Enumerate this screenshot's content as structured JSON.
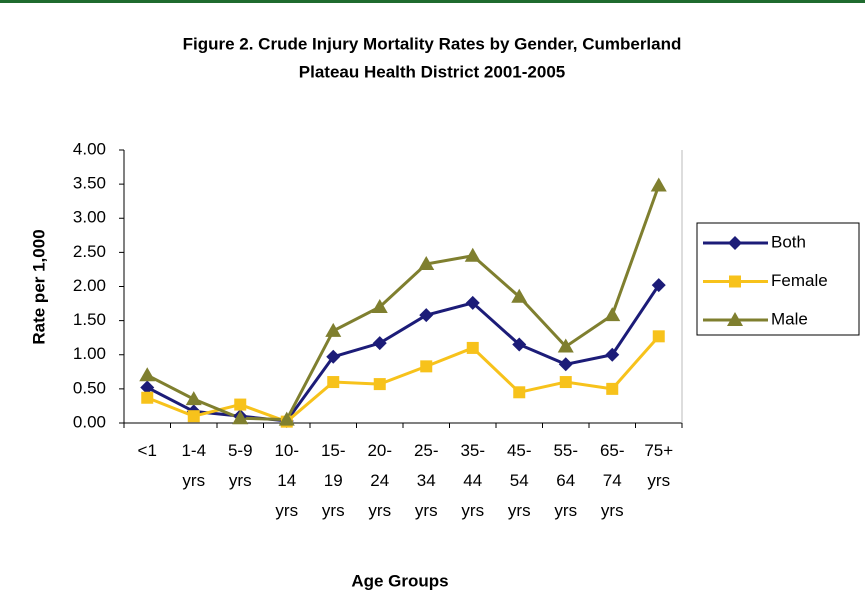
{
  "chart_data": {
    "type": "line",
    "title": "Figure 2. Crude Injury Mortality Rates by Gender, Cumberland Plateau Health District 2001-2005",
    "title_lines": [
      "Figure 2. Crude Injury Mortality Rates by Gender, Cumberland",
      "Plateau Health District 2001-2005"
    ],
    "x_label": "Age Groups",
    "y_label": "Rate per 1,000",
    "categories": [
      "<1",
      "1-4 yrs",
      "5-9 yrs",
      "10- 14 yrs",
      "15- 19 yrs",
      "20- 24 yrs",
      "25- 34 yrs",
      "35- 44 yrs",
      "45- 54 yrs",
      "55- 64 yrs",
      "65- 74 yrs",
      "75+ yrs"
    ],
    "series": [
      {
        "name": "Both",
        "color": "#1c1c78",
        "marker": "diamond",
        "values": [
          0.52,
          0.17,
          0.1,
          0.03,
          0.97,
          1.17,
          1.58,
          1.76,
          1.15,
          0.86,
          1.0,
          2.02
        ]
      },
      {
        "name": "Female",
        "color": "#f7c21b",
        "marker": "square",
        "values": [
          0.37,
          0.1,
          0.27,
          0.02,
          0.6,
          0.57,
          0.83,
          1.1,
          0.45,
          0.6,
          0.5,
          1.27
        ]
      },
      {
        "name": "Male",
        "color": "#7f7f2f",
        "marker": "triangle",
        "values": [
          0.7,
          0.35,
          0.07,
          0.05,
          1.35,
          1.7,
          2.33,
          2.45,
          1.85,
          1.12,
          1.58,
          3.48
        ]
      }
    ],
    "ylim": [
      0,
      4
    ],
    "yticks": [
      {
        "value": 0,
        "label": "0.00"
      },
      {
        "value": 0.5,
        "label": "0.50"
      },
      {
        "value": 1,
        "label": "1.00"
      },
      {
        "value": 1.5,
        "label": "1.50"
      },
      {
        "value": 2,
        "label": "2.00"
      },
      {
        "value": 2.5,
        "label": "2.50"
      },
      {
        "value": 3,
        "label": "3.00"
      },
      {
        "value": 3.5,
        "label": "3.50"
      },
      {
        "value": 4,
        "label": "4.00"
      }
    ],
    "legend": "right"
  }
}
